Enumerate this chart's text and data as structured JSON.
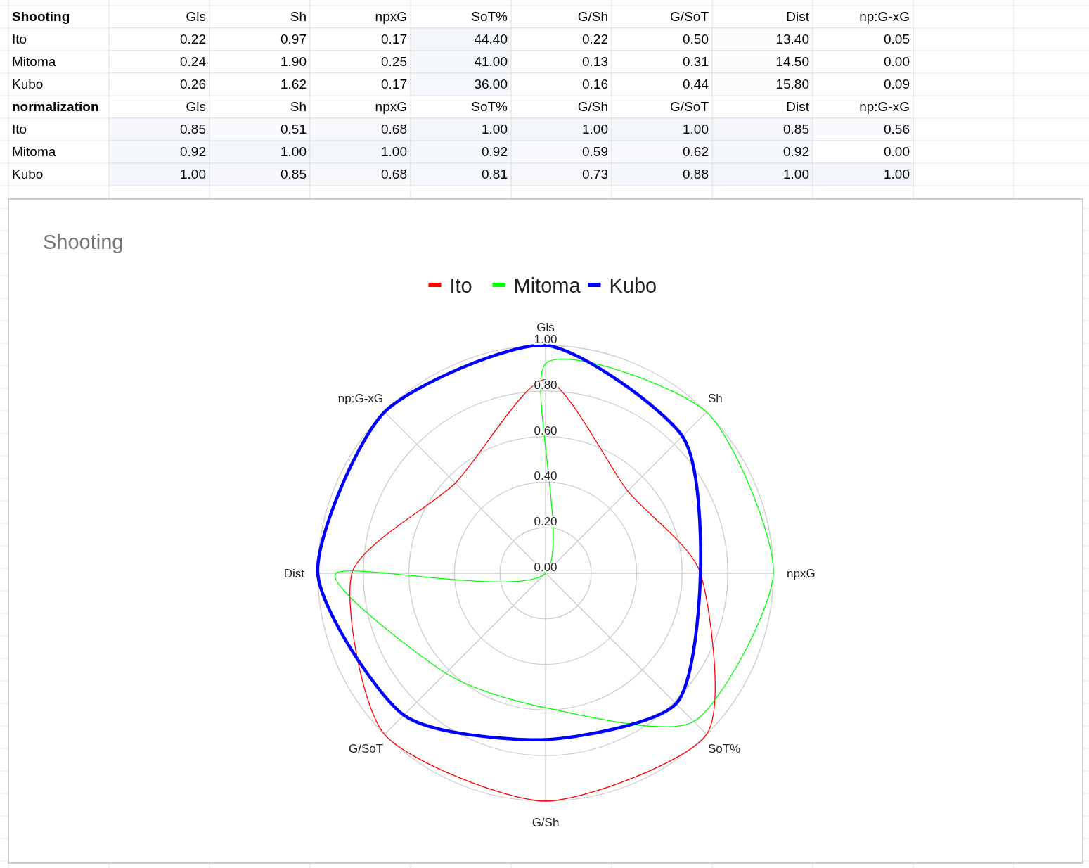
{
  "chart_data": [
    {
      "type": "heatmap",
      "title": "Shooting",
      "categories": [
        "Gls",
        "Sh",
        "npxG",
        "SoT%",
        "G/Sh",
        "G/SoT",
        "Dist",
        "np:G-xG"
      ],
      "y_categories": [
        "Ito",
        "Mitoma",
        "Kubo"
      ],
      "cells": [
        [
          0.22,
          0.97,
          0.17,
          44.4,
          0.22,
          0.5,
          13.4,
          0.05
        ],
        [
          0.24,
          1.9,
          0.25,
          41,
          0.13,
          0.31,
          14.5,
          0
        ],
        [
          0.26,
          1.62,
          0.17,
          36,
          0.16,
          0.44,
          15.8,
          0.09
        ]
      ],
      "cell_labels": [
        [
          "0.22",
          "0.97",
          "0.17",
          "44.40",
          "0.22",
          "0.50",
          "13.40",
          "0.05"
        ],
        [
          "0.24",
          "1.90",
          "0.25",
          "41.00",
          "0.13",
          "0.31",
          "14.50",
          "0.00"
        ],
        [
          "0.26",
          "1.62",
          "0.17",
          "36.00",
          "0.16",
          "0.44",
          "15.80",
          "0.09"
        ]
      ]
    },
    {
      "type": "heatmap",
      "title": "normalization",
      "categories": [
        "Gls",
        "Sh",
        "npxG",
        "SoT%",
        "G/Sh",
        "G/SoT",
        "Dist",
        "np:G-xG"
      ],
      "y_categories": [
        "Ito",
        "Mitoma",
        "Kubo"
      ],
      "cells": [
        [
          0.85,
          0.51,
          0.68,
          1,
          1,
          1,
          0.85,
          0.56
        ],
        [
          0.92,
          1,
          1,
          0.92,
          0.59,
          0.62,
          0.92,
          0
        ],
        [
          1,
          0.85,
          0.68,
          0.81,
          0.73,
          0.88,
          1,
          1
        ]
      ],
      "cell_labels": [
        [
          "0.85",
          "0.51",
          "0.68",
          "1.00",
          "1.00",
          "1.00",
          "0.85",
          "0.56"
        ],
        [
          "0.92",
          "1.00",
          "1.00",
          "0.92",
          "0.59",
          "0.62",
          "0.92",
          "0.00"
        ],
        [
          "1.00",
          "0.85",
          "0.68",
          "0.81",
          "0.73",
          "0.88",
          "1.00",
          "1.00"
        ]
      ]
    },
    {
      "type": "radar",
      "title": "Shooting",
      "categories": [
        "Gls",
        "Sh",
        "npxG",
        "SoT%",
        "G/Sh",
        "G/SoT",
        "Dist",
        "np:G-xG"
      ],
      "series": [
        {
          "name": "Ito",
          "color": "#ff0000",
          "values": [
            0.85,
            0.51,
            0.68,
            1,
            1,
            1,
            0.85,
            0.56
          ]
        },
        {
          "name": "Mitoma",
          "color": "#00ff00",
          "values": [
            0.92,
            1,
            1,
            0.92,
            0.59,
            0.62,
            0.92,
            0
          ]
        },
        {
          "name": "Kubo",
          "color": "#0000ff",
          "values": [
            1,
            0.85,
            0.68,
            0.81,
            0.73,
            0.88,
            1,
            1
          ]
        }
      ],
      "ylim": [
        0,
        1
      ],
      "yticks": [
        {
          "value": 0,
          "label": "0.00"
        },
        {
          "value": 0.2,
          "label": "0.20"
        },
        {
          "value": 0.4,
          "label": "0.40"
        },
        {
          "value": 0.6,
          "label": "0.60"
        },
        {
          "value": 0.8,
          "label": "0.80"
        },
        {
          "value": 1,
          "label": "1.00"
        }
      ],
      "grid": true,
      "legend": "top"
    }
  ]
}
